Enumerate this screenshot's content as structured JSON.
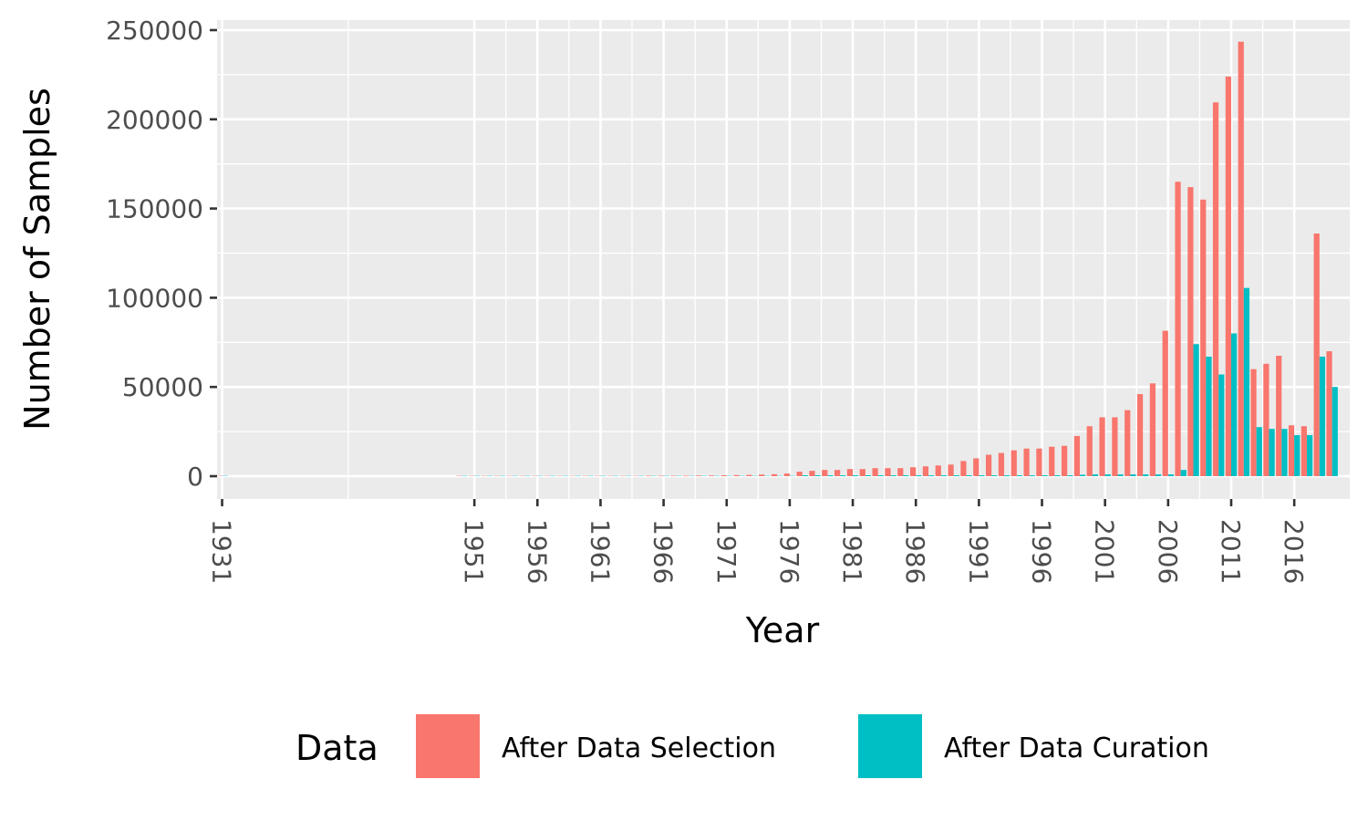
{
  "chart_data": {
    "type": "bar",
    "xlabel": "Year",
    "ylabel": "Number of Samples",
    "ylim": [
      0,
      250000
    ],
    "y_ticks": [
      0,
      50000,
      100000,
      150000,
      200000,
      250000
    ],
    "x_tick_labels": [
      "1931",
      "1951",
      "1956",
      "1961",
      "1966",
      "1971",
      "1976",
      "1981",
      "1986",
      "1991",
      "1996",
      "2001",
      "2006",
      "2011",
      "2016"
    ],
    "x_ticks": [
      1931,
      1951,
      1956,
      1961,
      1966,
      1971,
      1976,
      1981,
      1986,
      1991,
      1996,
      2001,
      2006,
      2011,
      2016
    ],
    "categories": [
      1931,
      1950,
      1951,
      1952,
      1953,
      1954,
      1955,
      1956,
      1957,
      1958,
      1959,
      1960,
      1961,
      1962,
      1963,
      1964,
      1965,
      1966,
      1967,
      1968,
      1969,
      1970,
      1971,
      1972,
      1973,
      1974,
      1975,
      1976,
      1977,
      1978,
      1979,
      1980,
      1981,
      1982,
      1983,
      1984,
      1985,
      1986,
      1987,
      1988,
      1989,
      1990,
      1991,
      1992,
      1993,
      1994,
      1995,
      1996,
      1997,
      1998,
      1999,
      2000,
      2001,
      2002,
      2003,
      2004,
      2005,
      2006,
      2007,
      2008,
      2009,
      2010,
      2011,
      2012,
      2013,
      2014,
      2015,
      2016,
      2017,
      2018,
      2019
    ],
    "series": [
      {
        "name": "After Data Selection",
        "color": "#F8766D",
        "values": [
          200,
          200,
          200,
          200,
          200,
          200,
          200,
          200,
          200,
          200,
          200,
          200,
          200,
          200,
          200,
          200,
          300,
          300,
          300,
          300,
          400,
          400,
          500,
          600,
          700,
          900,
          1100,
          1500,
          2500,
          3000,
          3500,
          3500,
          4000,
          4000,
          4500,
          4500,
          4500,
          5000,
          5500,
          6000,
          6500,
          8500,
          10000,
          12000,
          13000,
          14500,
          15500,
          15500,
          16500,
          17000,
          22500,
          28000,
          33000,
          33000,
          37000,
          46000,
          52000,
          81500,
          165000,
          162000,
          155000,
          209500,
          224000,
          243500,
          60000,
          63000,
          67500,
          28500,
          28000,
          136000,
          70000
        ]
      },
      {
        "name": "After Data Curation",
        "color": "#00BFC4",
        "values": [
          200,
          200,
          200,
          200,
          200,
          200,
          200,
          200,
          200,
          200,
          200,
          200,
          200,
          200,
          200,
          200,
          200,
          200,
          200,
          200,
          200,
          200,
          200,
          200,
          200,
          200,
          200,
          200,
          500,
          500,
          500,
          500,
          500,
          500,
          500,
          500,
          500,
          500,
          500,
          500,
          500,
          500,
          500,
          500,
          500,
          500,
          500,
          500,
          500,
          500,
          800,
          1000,
          1000,
          1000,
          1000,
          1000,
          1000,
          1000,
          3500,
          74000,
          67000,
          57000,
          80000,
          105500,
          27500,
          26500,
          26500,
          23000,
          23000,
          67000,
          50000
        ]
      }
    ],
    "legend": {
      "title": "Data",
      "position": "bottom"
    },
    "grid": true,
    "panel_color": "#EBEBEB",
    "grid_color": "#FFFFFF"
  }
}
